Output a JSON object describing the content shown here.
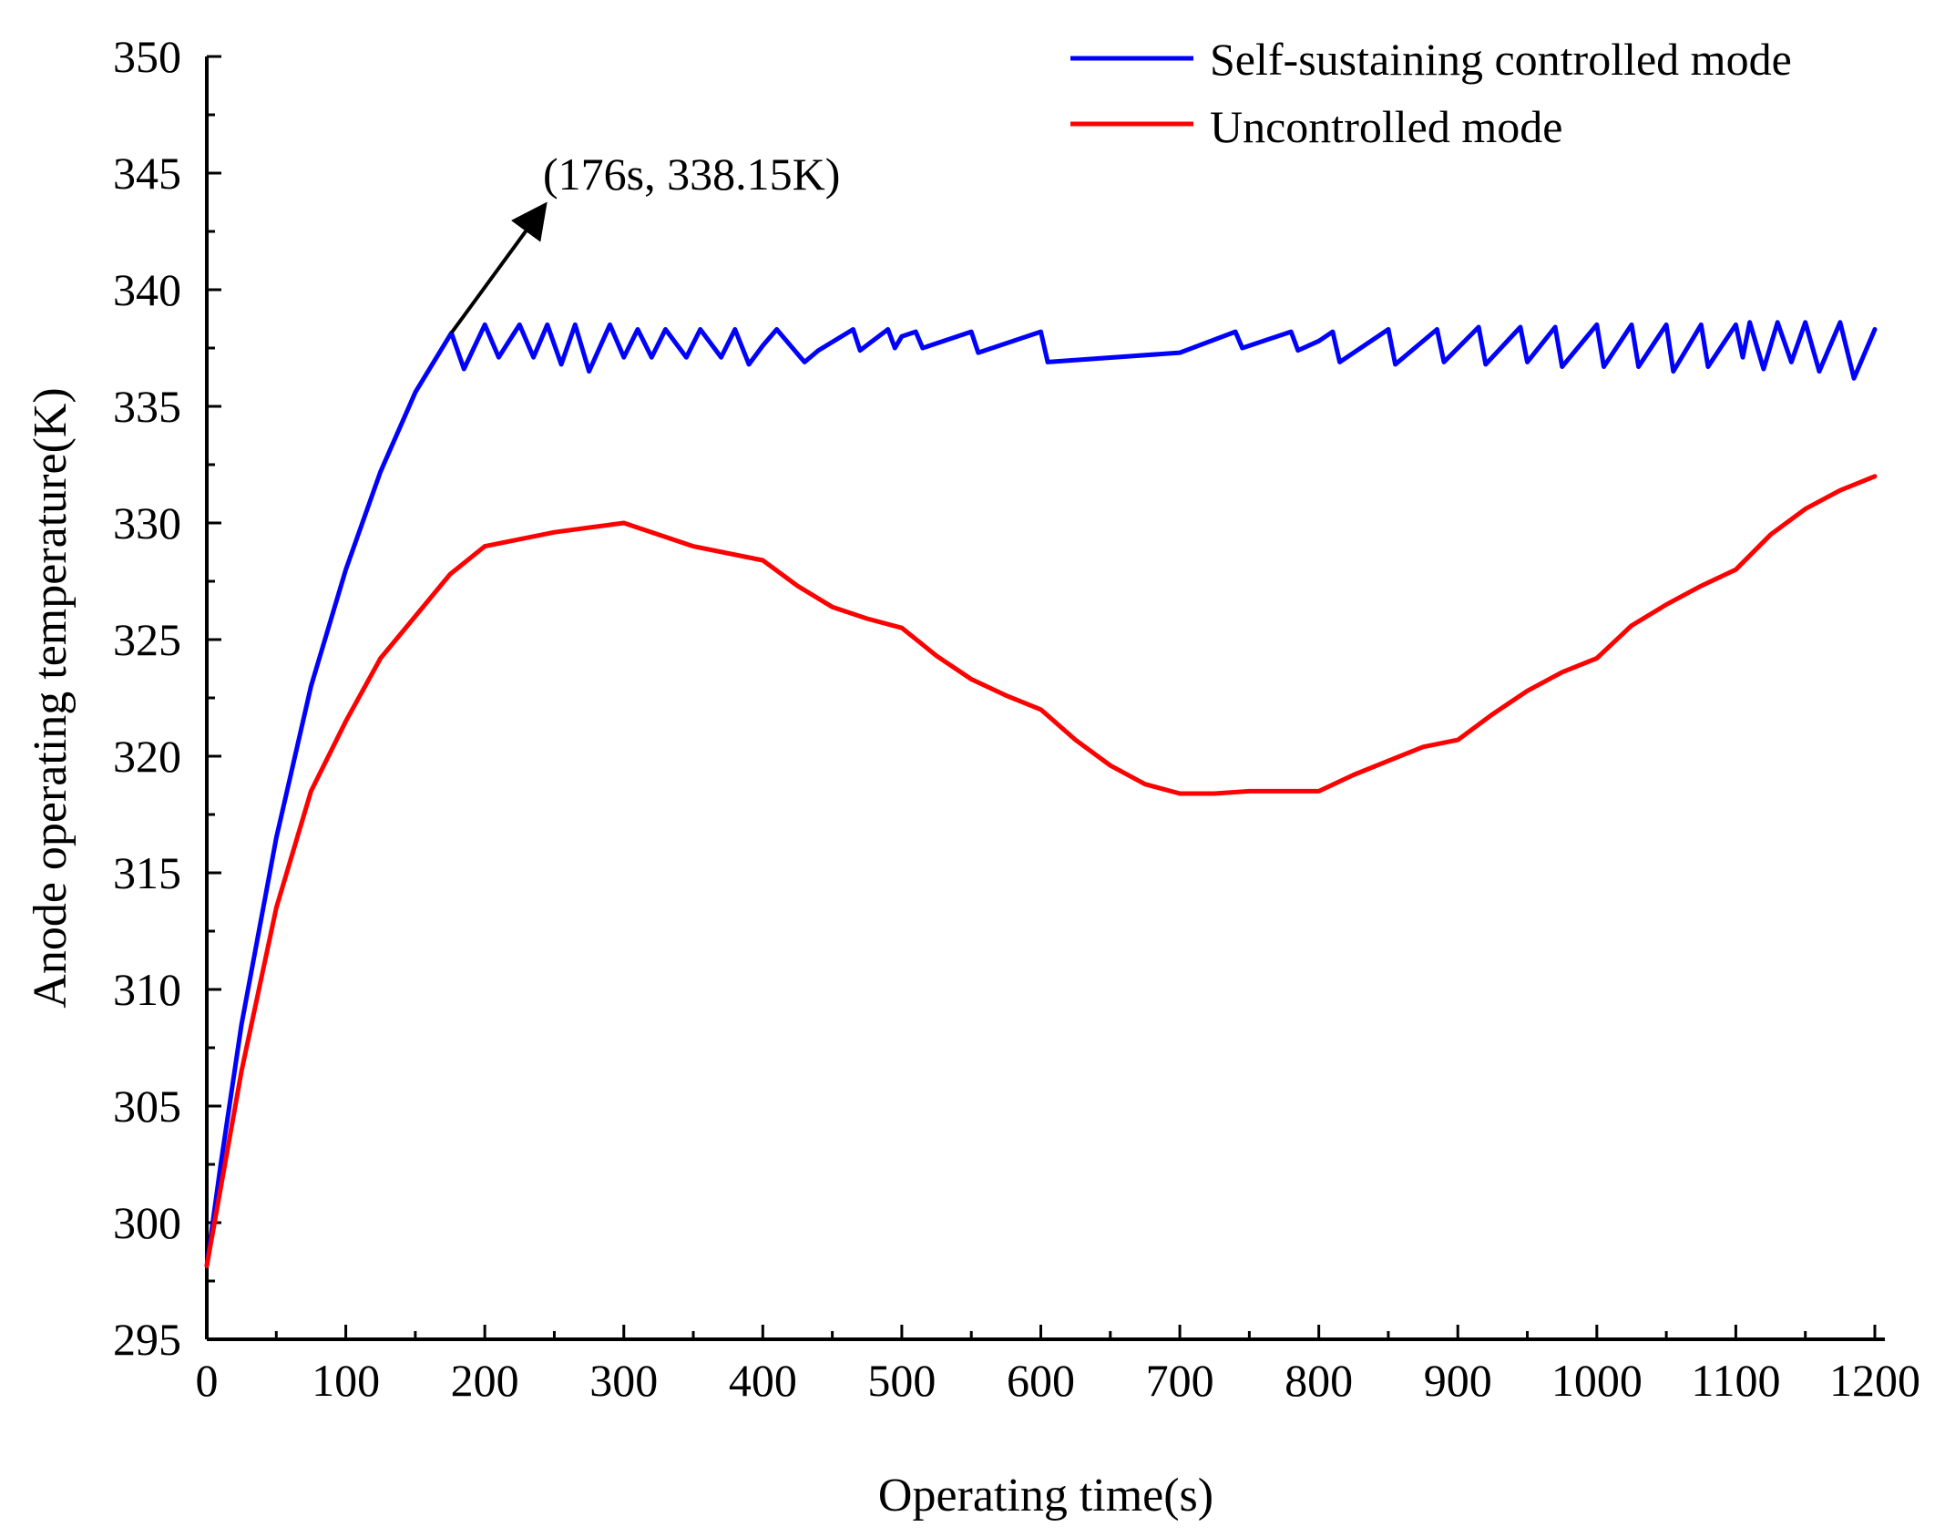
{
  "chart_data": {
    "type": "line",
    "title": "",
    "xlabel": "Operating time(s)",
    "ylabel": "Anode operating temperature(K)",
    "xlim": [
      0,
      1200
    ],
    "ylim": [
      295,
      350
    ],
    "x_ticks": [
      0,
      100,
      200,
      300,
      400,
      500,
      600,
      700,
      800,
      900,
      1000,
      1100,
      1200
    ],
    "y_ticks": [
      295,
      300,
      305,
      310,
      315,
      320,
      325,
      330,
      335,
      340,
      345,
      350
    ],
    "grid": false,
    "legend_position": "top-right",
    "series": [
      {
        "name": "Self-sustaining controlled mode",
        "color": "#0000ff",
        "x": [
          0,
          10,
          25,
          50,
          75,
          100,
          125,
          150,
          176,
          185,
          200,
          210,
          225,
          235,
          245,
          255,
          265,
          275,
          290,
          300,
          310,
          320,
          330,
          345,
          355,
          370,
          380,
          390,
          400,
          410,
          430,
          440,
          465,
          470,
          490,
          495,
          500,
          510,
          515,
          550,
          555,
          600,
          605,
          700,
          740,
          745,
          780,
          785,
          800,
          810,
          815,
          850,
          855,
          885,
          890,
          915,
          920,
          945,
          950,
          970,
          975,
          1000,
          1005,
          1025,
          1030,
          1050,
          1055,
          1075,
          1080,
          1100,
          1105,
          1110,
          1120,
          1130,
          1140,
          1150,
          1160,
          1175,
          1185,
          1200
        ],
        "values": [
          298.15,
          302.5,
          308.5,
          316.5,
          323.0,
          328.0,
          332.2,
          335.6,
          338.15,
          336.6,
          338.5,
          337.1,
          338.5,
          337.1,
          338.5,
          336.8,
          338.5,
          336.5,
          338.5,
          337.1,
          338.3,
          337.1,
          338.3,
          337.1,
          338.3,
          337.1,
          338.3,
          336.8,
          337.6,
          338.3,
          336.9,
          337.4,
          338.3,
          337.4,
          338.3,
          337.5,
          338.0,
          338.2,
          337.5,
          338.2,
          337.3,
          338.2,
          336.9,
          337.3,
          338.2,
          337.5,
          338.2,
          337.4,
          337.8,
          338.2,
          336.9,
          338.3,
          336.8,
          338.3,
          336.9,
          338.4,
          336.8,
          338.4,
          336.9,
          338.4,
          336.7,
          338.5,
          336.7,
          338.5,
          336.7,
          338.5,
          336.5,
          338.5,
          336.7,
          338.5,
          337.1,
          338.6,
          336.6,
          338.6,
          336.9,
          338.6,
          336.5,
          338.6,
          336.2,
          338.3
        ]
      },
      {
        "name": "Uncontrolled mode",
        "color": "#ff0000",
        "x": [
          0,
          10,
          25,
          50,
          75,
          100,
          125,
          150,
          175,
          200,
          250,
          300,
          350,
          400,
          425,
          450,
          475,
          500,
          525,
          550,
          575,
          600,
          625,
          650,
          675,
          700,
          725,
          750,
          775,
          800,
          825,
          850,
          875,
          900,
          925,
          950,
          975,
          1000,
          1025,
          1050,
          1075,
          1100,
          1125,
          1150,
          1175,
          1200
        ],
        "values": [
          298.15,
          301.5,
          306.5,
          313.5,
          318.5,
          321.5,
          324.2,
          326.0,
          327.8,
          329.0,
          329.6,
          330.0,
          329.0,
          328.4,
          327.3,
          326.4,
          325.9,
          325.5,
          324.3,
          323.3,
          322.6,
          322.0,
          320.7,
          319.6,
          318.8,
          318.4,
          318.4,
          318.5,
          318.5,
          318.5,
          319.2,
          319.8,
          320.4,
          320.7,
          321.8,
          322.8,
          323.6,
          324.2,
          325.6,
          326.5,
          327.3,
          328.0,
          329.5,
          330.6,
          331.4,
          332.0
        ]
      }
    ],
    "annotations": [
      {
        "text": "(176s, 338.15K)",
        "x": 176,
        "y": 338.15
      }
    ]
  }
}
